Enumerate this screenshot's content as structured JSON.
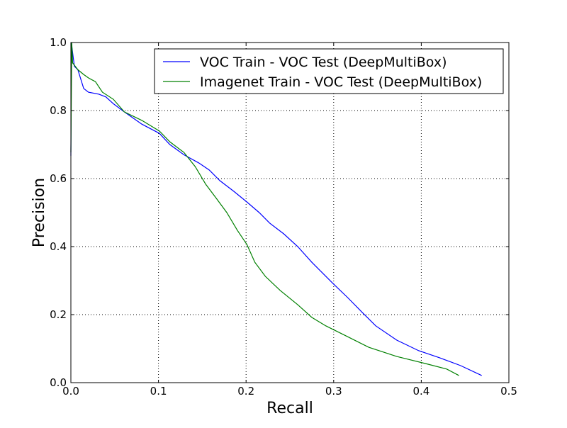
{
  "chart_data": {
    "type": "line",
    "title": "",
    "xlabel": "Recall",
    "ylabel": "Precision",
    "xlim": [
      0,
      0.5
    ],
    "ylim": [
      0,
      1.0
    ],
    "grid": true,
    "legend_placement": "top-right",
    "xticks": [
      "0.0",
      "0.1",
      "0.2",
      "0.3",
      "0.4",
      "0.5"
    ],
    "yticks": [
      "0.0",
      "0.2",
      "0.4",
      "0.6",
      "0.8",
      "1.0"
    ],
    "series": [
      {
        "name": "VOC Train - VOC Test (DeepMultiBox)",
        "color": "#0000ff",
        "points": [
          [
            0,
            0.667
          ],
          [
            0.0005,
            1.0
          ],
          [
            0.002,
            0.97
          ],
          [
            0.004,
            0.93
          ],
          [
            0.008,
            0.92
          ],
          [
            0.0146,
            0.865
          ],
          [
            0.02,
            0.854
          ],
          [
            0.032,
            0.848
          ],
          [
            0.04,
            0.84
          ],
          [
            0.0485,
            0.82
          ],
          [
            0.061,
            0.796
          ],
          [
            0.081,
            0.76
          ],
          [
            0.101,
            0.733
          ],
          [
            0.113,
            0.7
          ],
          [
            0.129,
            0.67
          ],
          [
            0.146,
            0.646
          ],
          [
            0.158,
            0.625
          ],
          [
            0.17,
            0.594
          ],
          [
            0.186,
            0.5625
          ],
          [
            0.201,
            0.531
          ],
          [
            0.215,
            0.5
          ],
          [
            0.227,
            0.469
          ],
          [
            0.243,
            0.4375
          ],
          [
            0.259,
            0.4
          ],
          [
            0.275,
            0.354
          ],
          [
            0.287,
            0.323
          ],
          [
            0.299,
            0.292
          ],
          [
            0.316,
            0.25
          ],
          [
            0.332,
            0.208
          ],
          [
            0.348,
            0.167
          ],
          [
            0.372,
            0.125
          ],
          [
            0.397,
            0.094
          ],
          [
            0.421,
            0.073
          ],
          [
            0.445,
            0.05
          ],
          [
            0.469,
            0.021
          ]
        ]
      },
      {
        "name": "Imagenet Train - VOC Test (DeepMultiBox)",
        "color": "#008000",
        "points": [
          [
            0,
            0.677
          ],
          [
            0.001,
            1.0
          ],
          [
            0.002,
            0.94
          ],
          [
            0.008,
            0.92
          ],
          [
            0.0146,
            0.906
          ],
          [
            0.02,
            0.896
          ],
          [
            0.028,
            0.885
          ],
          [
            0.036,
            0.854
          ],
          [
            0.0485,
            0.833
          ],
          [
            0.061,
            0.796
          ],
          [
            0.081,
            0.771
          ],
          [
            0.101,
            0.74
          ],
          [
            0.113,
            0.708
          ],
          [
            0.129,
            0.677
          ],
          [
            0.142,
            0.635
          ],
          [
            0.154,
            0.583
          ],
          [
            0.166,
            0.542
          ],
          [
            0.178,
            0.5
          ],
          [
            0.19,
            0.448
          ],
          [
            0.201,
            0.406
          ],
          [
            0.21,
            0.354
          ],
          [
            0.222,
            0.3125
          ],
          [
            0.239,
            0.271
          ],
          [
            0.259,
            0.229
          ],
          [
            0.275,
            0.192
          ],
          [
            0.291,
            0.167
          ],
          [
            0.316,
            0.135
          ],
          [
            0.34,
            0.104
          ],
          [
            0.372,
            0.077
          ],
          [
            0.405,
            0.056
          ],
          [
            0.429,
            0.04
          ],
          [
            0.443,
            0.021
          ]
        ]
      }
    ]
  }
}
